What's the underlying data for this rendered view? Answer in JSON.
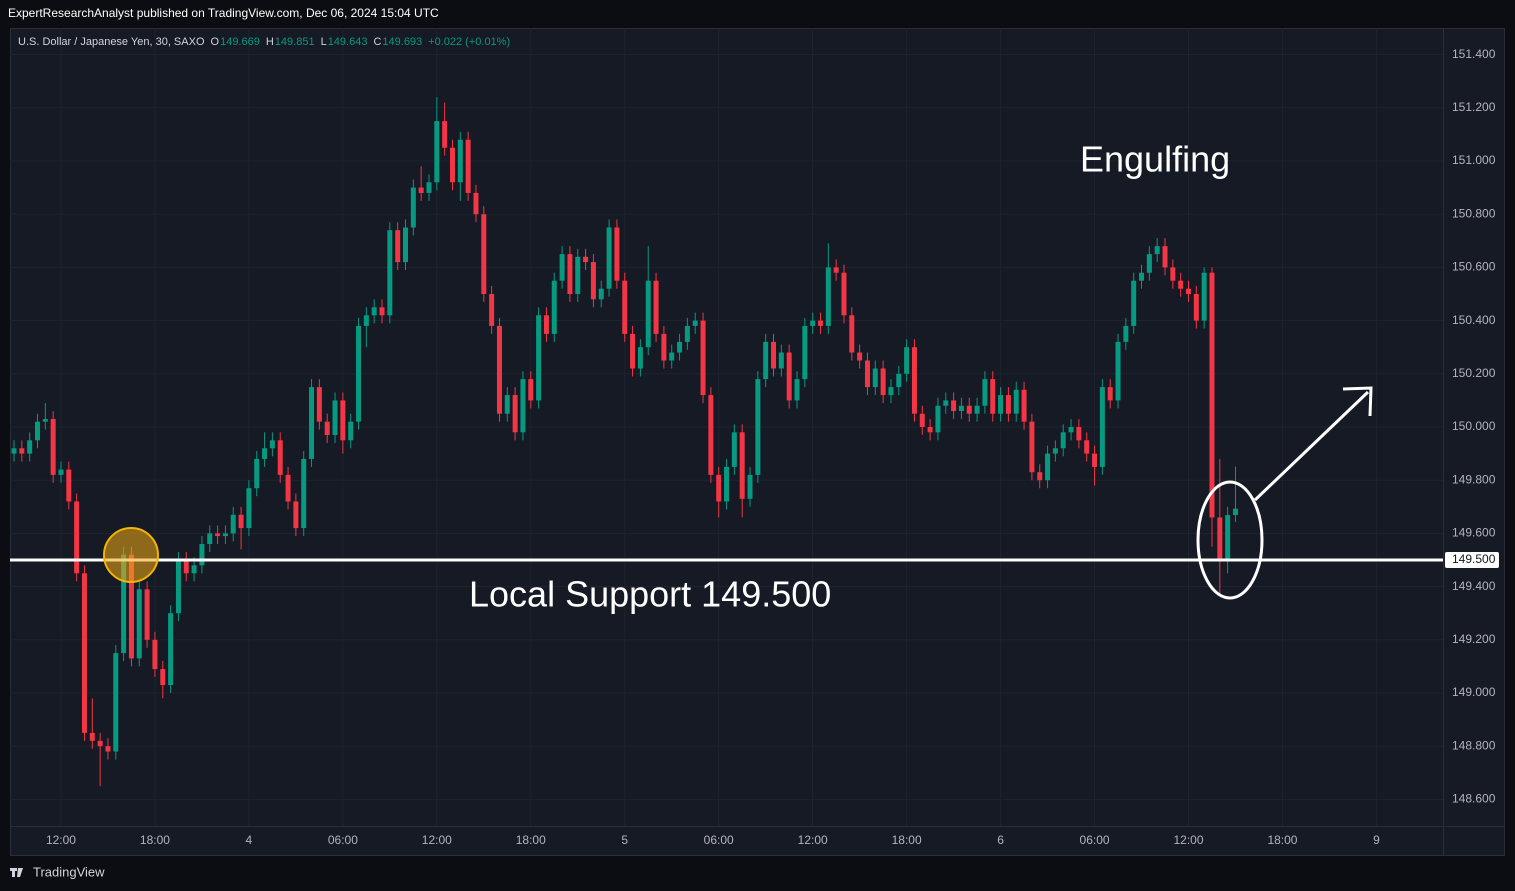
{
  "header": {
    "publisher": "ExpertResearchAnalyst published on TradingView.com, Dec 06, 2024 15:04 UTC"
  },
  "chart_data": {
    "type": "candlestick",
    "title": "U.S. Dollar / Japanese Yen, 30, SAXO",
    "legend": [
      {
        "label": "O",
        "value": "149.669"
      },
      {
        "label": "H",
        "value": "149.851"
      },
      {
        "label": "L",
        "value": "149.643"
      },
      {
        "label": "C",
        "value": "149.693"
      }
    ],
    "change": "+0.022 (+0.01%)",
    "categories": [
      null,
      null,
      null,
      null,
      null,
      null,
      "12:00",
      null,
      null,
      null,
      null,
      null,
      null,
      null,
      null,
      null,
      null,
      null,
      "18:00",
      null,
      null,
      null,
      null,
      null,
      null,
      null,
      null,
      null,
      null,
      null,
      "4",
      null,
      null,
      null,
      null,
      null,
      null,
      null,
      null,
      null,
      null,
      null,
      "06:00",
      null,
      null,
      null,
      null,
      null,
      null,
      null,
      null,
      null,
      null,
      null,
      "12:00",
      null,
      null,
      null,
      null,
      null,
      null,
      null,
      null,
      null,
      null,
      null,
      "18:00",
      null,
      null,
      null,
      null,
      null,
      null,
      null,
      null,
      null,
      null,
      null,
      "5",
      null,
      null,
      null,
      null,
      null,
      null,
      null,
      null,
      null,
      null,
      null,
      "06:00",
      null,
      null,
      null,
      null,
      null,
      null,
      null,
      null,
      null,
      null,
      null,
      "12:00",
      null,
      null,
      null,
      null,
      null,
      null,
      null,
      null,
      null,
      null,
      null,
      "18:00",
      null,
      null,
      null,
      null,
      null,
      null,
      null,
      null,
      null,
      null,
      null,
      "6",
      null,
      null,
      null,
      null,
      null,
      null,
      null,
      null,
      null,
      null,
      null,
      "06:00",
      null,
      null,
      null,
      null,
      null,
      null,
      null,
      null,
      null,
      null,
      null,
      "12:00",
      null,
      null,
      null,
      null,
      null,
      null,
      null,
      null,
      null,
      null,
      null,
      "18:00",
      null,
      null,
      null,
      null,
      null,
      null,
      null,
      null,
      null,
      null,
      null,
      "9"
    ],
    "open": [
      149.9,
      149.92,
      149.9,
      149.95,
      150.02,
      150.03,
      149.82,
      149.84,
      149.72,
      149.45,
      148.85,
      148.82,
      148.8,
      148.78,
      149.15,
      149.52,
      149.13,
      149.39,
      149.2,
      149.09,
      149.03,
      149.3,
      149.5,
      149.45,
      149.48,
      149.56,
      149.6,
      149.59,
      149.6,
      149.67,
      149.62,
      149.77,
      149.88,
      149.92,
      149.95,
      149.82,
      149.72,
      149.62,
      149.88,
      150.15,
      150.02,
      149.97,
      150.1,
      149.95,
      150.02,
      150.38,
      150.42,
      150.45,
      150.42,
      150.74,
      150.62,
      150.75,
      150.9,
      150.88,
      150.92,
      151.15,
      151.05,
      150.92,
      151.08,
      150.88,
      150.8,
      150.5,
      150.38,
      150.05,
      150.12,
      149.98,
      150.18,
      150.1,
      150.42,
      150.35,
      150.55,
      150.65,
      150.5,
      150.64,
      150.62,
      150.48,
      150.52,
      150.75,
      150.55,
      150.35,
      150.22,
      150.3,
      150.55,
      150.35,
      150.25,
      150.28,
      150.32,
      150.38,
      150.4,
      150.12,
      149.82,
      149.72,
      149.85,
      149.98,
      149.73,
      149.82,
      150.18,
      150.32,
      150.22,
      150.28,
      150.1,
      150.18,
      150.38,
      150.4,
      150.38,
      150.6,
      150.58,
      150.42,
      150.28,
      150.25,
      150.15,
      150.22,
      150.12,
      150.15,
      150.2,
      150.3,
      150.05,
      150.0,
      149.98,
      150.08,
      150.1,
      150.06,
      150.08,
      150.05,
      150.08,
      150.18,
      150.05,
      150.12,
      150.05,
      150.14,
      150.02,
      149.83,
      149.8,
      149.9,
      149.92,
      149.98,
      150.0,
      149.95,
      149.9,
      149.85,
      150.15,
      150.1,
      150.32,
      150.38,
      150.55,
      150.58,
      150.65,
      150.68,
      150.6,
      150.55,
      150.52,
      150.5,
      150.4,
      150.58,
      149.66,
      149.5,
      149.669,
      null,
      null,
      null,
      null,
      null,
      null,
      null,
      null,
      null,
      null,
      null,
      null,
      null,
      null,
      null,
      null,
      null,
      null
    ],
    "high": [
      149.95,
      149.95,
      149.98,
      150.05,
      150.09,
      150.06,
      149.87,
      149.87,
      149.75,
      149.48,
      148.98,
      148.85,
      148.83,
      149.18,
      149.55,
      149.55,
      149.42,
      149.42,
      149.23,
      149.12,
      149.33,
      149.53,
      149.53,
      149.51,
      149.59,
      149.63,
      149.63,
      149.63,
      149.7,
      149.7,
      149.8,
      149.91,
      149.98,
      149.98,
      149.98,
      149.85,
      149.75,
      149.91,
      150.18,
      150.18,
      150.05,
      150.13,
      150.13,
      150.05,
      150.41,
      150.45,
      150.48,
      150.48,
      150.77,
      150.77,
      150.78,
      150.93,
      150.98,
      150.95,
      151.24,
      151.22,
      151.08,
      151.11,
      151.11,
      150.91,
      150.83,
      150.53,
      150.41,
      150.15,
      150.15,
      150.21,
      150.21,
      150.45,
      150.45,
      150.58,
      150.68,
      150.68,
      150.67,
      150.67,
      150.65,
      150.55,
      150.78,
      150.78,
      150.58,
      150.38,
      150.33,
      150.68,
      150.58,
      150.38,
      150.31,
      150.35,
      150.41,
      150.43,
      150.43,
      150.15,
      149.85,
      149.88,
      150.01,
      150.01,
      149.85,
      150.21,
      150.35,
      150.35,
      150.31,
      150.31,
      150.21,
      150.41,
      150.43,
      150.43,
      150.69,
      150.63,
      150.61,
      150.45,
      150.31,
      150.28,
      150.25,
      150.25,
      150.18,
      150.23,
      150.33,
      150.33,
      150.08,
      150.03,
      150.11,
      150.13,
      150.13,
      150.11,
      150.11,
      150.11,
      150.21,
      150.21,
      150.15,
      150.15,
      150.17,
      150.17,
      150.05,
      149.86,
      149.93,
      149.95,
      150.01,
      150.03,
      150.03,
      149.98,
      149.93,
      150.18,
      150.18,
      150.35,
      150.41,
      150.58,
      150.61,
      150.68,
      150.71,
      150.71,
      150.63,
      150.58,
      150.55,
      150.53,
      150.6,
      150.6,
      149.88,
      149.7,
      149.851,
      null,
      null,
      null,
      null,
      null,
      null,
      null,
      null,
      null,
      null,
      null,
      null,
      null,
      null,
      null,
      null,
      null,
      null
    ],
    "low": [
      149.87,
      149.87,
      149.87,
      149.92,
      149.99,
      149.79,
      149.79,
      149.69,
      149.42,
      148.82,
      148.79,
      148.65,
      148.75,
      148.75,
      149.12,
      149.1,
      149.1,
      149.17,
      149.06,
      148.98,
      149.0,
      149.27,
      149.42,
      149.42,
      149.45,
      149.53,
      149.56,
      149.56,
      149.57,
      149.54,
      149.59,
      149.74,
      149.85,
      149.89,
      149.79,
      149.69,
      149.59,
      149.59,
      149.85,
      149.99,
      149.94,
      149.94,
      149.9,
      149.92,
      149.99,
      150.3,
      150.39,
      150.39,
      150.39,
      150.59,
      150.59,
      150.72,
      150.85,
      150.85,
      150.89,
      151.02,
      150.89,
      150.85,
      150.85,
      150.77,
      150.47,
      150.35,
      150.02,
      150.02,
      149.95,
      149.95,
      150.07,
      150.07,
      150.32,
      150.32,
      150.52,
      150.47,
      150.47,
      150.59,
      150.45,
      150.45,
      150.49,
      150.52,
      150.32,
      150.19,
      150.19,
      150.27,
      150.32,
      150.22,
      150.22,
      150.25,
      150.29,
      150.35,
      150.09,
      149.79,
      149.66,
      149.69,
      149.82,
      149.66,
      149.7,
      149.79,
      150.15,
      150.19,
      150.19,
      150.07,
      150.07,
      150.15,
      150.35,
      150.35,
      150.35,
      150.55,
      150.39,
      150.25,
      150.22,
      150.12,
      150.12,
      150.09,
      150.09,
      150.12,
      150.17,
      150.02,
      149.97,
      149.95,
      149.95,
      150.05,
      150.03,
      150.03,
      150.02,
      150.02,
      150.05,
      150.02,
      150.02,
      150.02,
      150.02,
      149.99,
      149.8,
      149.77,
      149.77,
      149.87,
      149.89,
      149.95,
      149.92,
      149.87,
      149.78,
      149.82,
      150.07,
      150.07,
      150.29,
      150.35,
      150.52,
      150.55,
      150.62,
      150.57,
      150.52,
      150.49,
      150.47,
      150.37,
      150.37,
      149.55,
      149.37,
      149.45,
      149.643,
      null,
      null,
      null,
      null,
      null,
      null,
      null,
      null,
      null,
      null,
      null,
      null,
      null,
      null,
      null,
      null,
      null,
      null
    ],
    "close": [
      149.92,
      149.9,
      149.95,
      150.02,
      150.03,
      149.82,
      149.84,
      149.72,
      149.45,
      148.85,
      148.82,
      148.8,
      148.78,
      149.15,
      149.52,
      149.13,
      149.39,
      149.2,
      149.09,
      149.03,
      149.3,
      149.5,
      149.45,
      149.48,
      149.56,
      149.6,
      149.59,
      149.6,
      149.67,
      149.62,
      149.77,
      149.88,
      149.92,
      149.95,
      149.82,
      149.72,
      149.62,
      149.88,
      150.15,
      150.02,
      149.97,
      150.1,
      149.95,
      150.02,
      150.38,
      150.42,
      150.45,
      150.42,
      150.74,
      150.62,
      150.75,
      150.9,
      150.88,
      150.92,
      151.15,
      151.05,
      150.92,
      151.08,
      150.88,
      150.8,
      150.5,
      150.38,
      150.05,
      150.12,
      149.98,
      150.18,
      150.1,
      150.42,
      150.35,
      150.55,
      150.65,
      150.5,
      150.64,
      150.62,
      150.48,
      150.52,
      150.75,
      150.55,
      150.35,
      150.22,
      150.3,
      150.55,
      150.35,
      150.25,
      150.28,
      150.32,
      150.38,
      150.4,
      150.12,
      149.82,
      149.72,
      149.85,
      149.98,
      149.73,
      149.82,
      150.18,
      150.32,
      150.22,
      150.28,
      150.1,
      150.18,
      150.38,
      150.4,
      150.38,
      150.6,
      150.58,
      150.42,
      150.28,
      150.25,
      150.15,
      150.22,
      150.12,
      150.15,
      150.2,
      150.3,
      150.05,
      150.0,
      149.98,
      150.08,
      150.1,
      150.06,
      150.08,
      150.05,
      150.08,
      150.18,
      150.05,
      150.12,
      150.05,
      150.14,
      150.02,
      149.83,
      149.8,
      149.9,
      149.92,
      149.98,
      150.0,
      149.95,
      149.9,
      149.85,
      150.15,
      150.1,
      150.32,
      150.38,
      150.55,
      150.58,
      150.65,
      150.68,
      150.6,
      150.55,
      150.52,
      150.5,
      150.4,
      150.58,
      149.66,
      149.5,
      149.669,
      149.693,
      null,
      null,
      null,
      null,
      null,
      null,
      null,
      null,
      null,
      null,
      null,
      null,
      null,
      null,
      null,
      null,
      null,
      null
    ],
    "up_color": "#089981",
    "down_color": "#f23645",
    "ylim": [
      148.5,
      151.5
    ],
    "yticks": [
      {
        "value": 148.6,
        "label": "148.600"
      },
      {
        "value": 148.8,
        "label": "148.800"
      },
      {
        "value": 149.0,
        "label": "149.000"
      },
      {
        "value": 149.2,
        "label": "149.200"
      },
      {
        "value": 149.4,
        "label": "149.400"
      },
      {
        "value": 149.6,
        "label": "149.600"
      },
      {
        "value": 149.8,
        "label": "149.800"
      },
      {
        "value": 150.0,
        "label": "150.000"
      },
      {
        "value": 150.2,
        "label": "150.200"
      },
      {
        "value": 150.4,
        "label": "150.400"
      },
      {
        "value": 150.6,
        "label": "150.600"
      },
      {
        "value": 150.8,
        "label": "150.800"
      },
      {
        "value": 151.0,
        "label": "151.000"
      },
      {
        "value": 151.2,
        "label": "151.200"
      },
      {
        "value": 151.4,
        "label": "151.400"
      }
    ],
    "grid": true,
    "support": {
      "value": 149.5,
      "label": "149.500",
      "color": "#ffffff"
    },
    "annotations": [
      "Engulfing",
      "Local Support 149.500"
    ]
  },
  "footer": {
    "brand": "TradingView"
  }
}
